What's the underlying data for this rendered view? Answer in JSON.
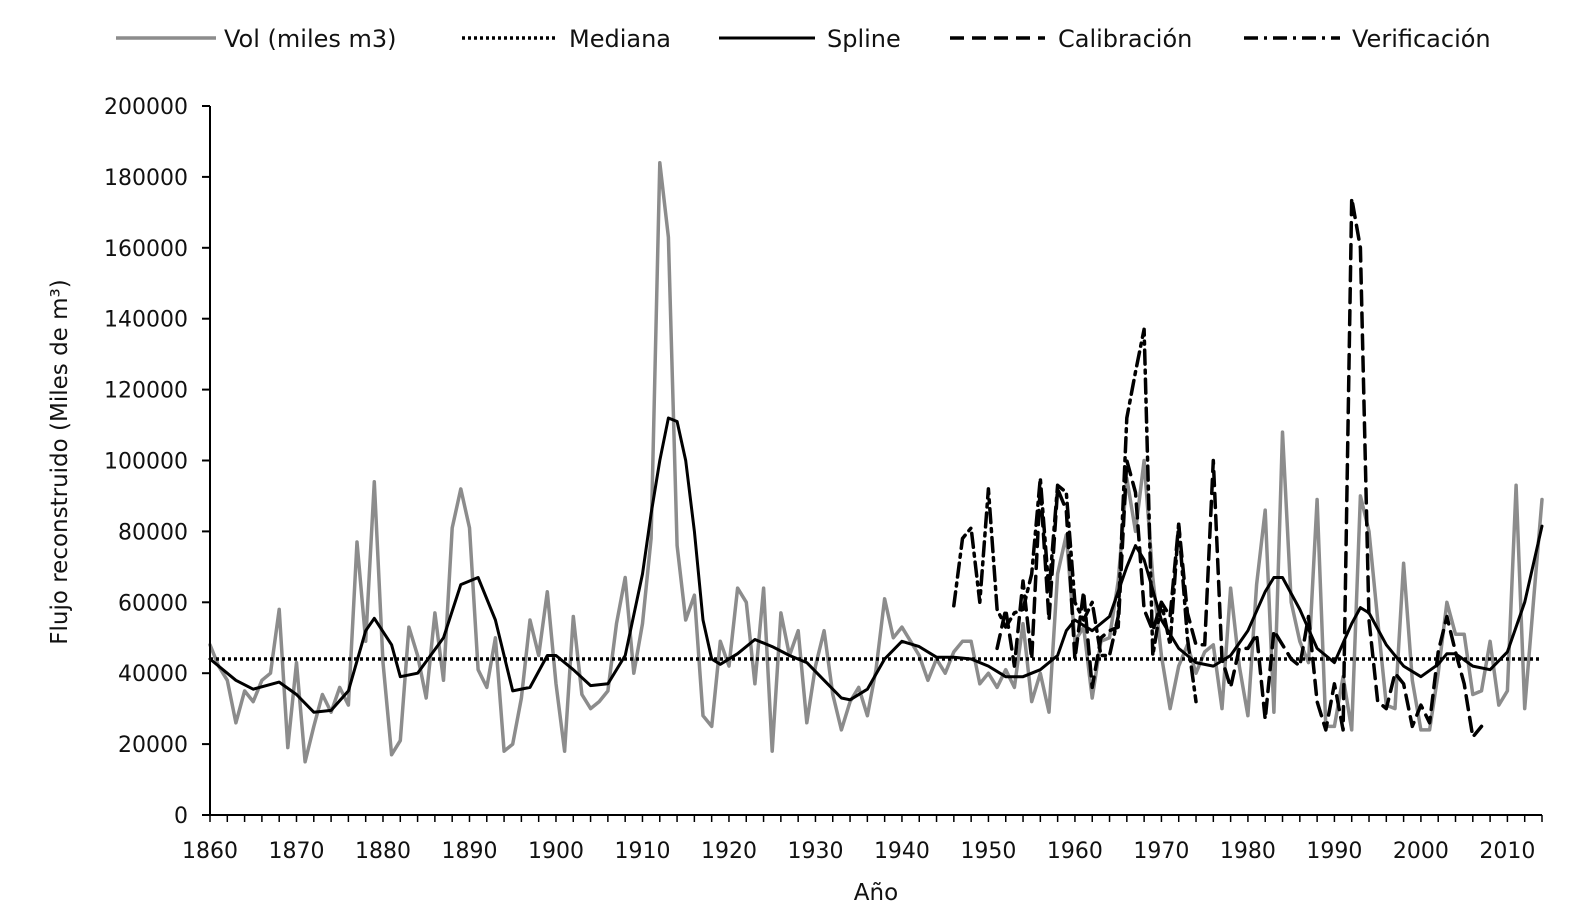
{
  "chart_data": {
    "type": "line",
    "title": "",
    "xlabel": "Año",
    "ylabel": "Flujo reconstruido (Miles de m³)",
    "xlim": [
      1860,
      2014
    ],
    "ylim": [
      0,
      200000
    ],
    "x_ticks": [
      1860,
      1870,
      1880,
      1890,
      1900,
      1910,
      1920,
      1930,
      1940,
      1950,
      1960,
      1970,
      1980,
      1990,
      2000,
      2010
    ],
    "x_tick_labels": [
      "1860",
      "1870",
      "1880",
      "1890",
      "1900",
      "1910",
      "1920",
      "1930",
      "1940",
      "1950",
      "1960",
      "1970",
      "1980",
      "1990",
      "2000",
      "2010"
    ],
    "y_ticks": [
      0,
      20000,
      40000,
      60000,
      80000,
      100000,
      120000,
      140000,
      160000,
      180000,
      200000
    ],
    "y_tick_labels": [
      "0",
      "20000",
      "40000",
      "60000",
      "80000",
      "100000",
      "120000",
      "140000",
      "160000",
      "180000",
      "200000"
    ],
    "grid": false,
    "legend_position": "top",
    "series": [
      {
        "name": "Vol (miles m3)",
        "style": "solid",
        "color": "#8c8c8c",
        "width": 3.5,
        "x": [
          1860,
          1861,
          1862,
          1863,
          1864,
          1865,
          1866,
          1867,
          1868,
          1869,
          1870,
          1871,
          1872,
          1873,
          1874,
          1875,
          1876,
          1877,
          1878,
          1879,
          1880,
          1881,
          1882,
          1883,
          1884,
          1885,
          1886,
          1887,
          1888,
          1889,
          1890,
          1891,
          1892,
          1893,
          1894,
          1895,
          1896,
          1897,
          1898,
          1899,
          1900,
          1901,
          1902,
          1903,
          1904,
          1905,
          1906,
          1907,
          1908,
          1909,
          1910,
          1911,
          1912,
          1913,
          1914,
          1915,
          1916,
          1917,
          1918,
          1919,
          1920,
          1921,
          1922,
          1923,
          1924,
          1925,
          1926,
          1927,
          1928,
          1929,
          1930,
          1931,
          1932,
          1933,
          1934,
          1935,
          1936,
          1937,
          1938,
          1939,
          1940,
          1941,
          1942,
          1943,
          1944,
          1945,
          1946,
          1947,
          1948,
          1949,
          1950,
          1951,
          1952,
          1953,
          1954,
          1955,
          1956,
          1957,
          1958,
          1959,
          1960,
          1961,
          1962,
          1963,
          1964,
          1965,
          1966,
          1967,
          1968,
          1969,
          1970,
          1971,
          1972,
          1973,
          1974,
          1975,
          1976,
          1977,
          1978,
          1979,
          1980,
          1981,
          1982,
          1983,
          1984,
          1985,
          1986,
          1987,
          1988,
          1989,
          1990,
          1991,
          1992,
          1993,
          1994,
          1995,
          1996,
          1997,
          1998,
          1999,
          2000,
          2001,
          2002,
          2003,
          2004,
          2005,
          2006,
          2007,
          2008,
          2009,
          2010,
          2011,
          2012,
          2013,
          2014
        ],
        "values": [
          48000,
          42000,
          38000,
          26000,
          35000,
          32000,
          38000,
          40000,
          58000,
          19000,
          43000,
          15000,
          25000,
          34000,
          29000,
          36000,
          31000,
          77000,
          49000,
          94000,
          43000,
          17000,
          21000,
          53000,
          45000,
          33000,
          57000,
          38000,
          81000,
          92000,
          81000,
          41000,
          36000,
          50000,
          18000,
          20000,
          33000,
          55000,
          45000,
          63000,
          37000,
          18000,
          56000,
          34000,
          30000,
          32000,
          35000,
          54000,
          67000,
          40000,
          54000,
          78000,
          184000,
          163000,
          76000,
          55000,
          62000,
          28000,
          25000,
          49000,
          42000,
          64000,
          60000,
          37000,
          64000,
          18000,
          57000,
          45000,
          52000,
          26000,
          42000,
          52000,
          34000,
          24000,
          32000,
          36000,
          28000,
          41000,
          61000,
          50000,
          53000,
          49000,
          45000,
          38000,
          44000,
          40000,
          46000,
          49000,
          49000,
          37000,
          40000,
          36000,
          41000,
          36000,
          54000,
          32000,
          40000,
          29000,
          68000,
          79000,
          49000,
          53000,
          33000,
          49000,
          50000,
          66000,
          95000,
          80000,
          100000,
          67000,
          45000,
          30000,
          42000,
          48000,
          40000,
          46000,
          48000,
          30000,
          64000,
          42000,
          28000,
          65000,
          86000,
          29000,
          108000,
          60000,
          49000,
          43000,
          89000,
          25000,
          25000,
          39000,
          24000,
          90000,
          80000,
          55000,
          31000,
          30000,
          71000,
          38000,
          24000,
          24000,
          40000,
          60000,
          51000,
          51000,
          34000,
          35000,
          49000,
          31000,
          35000,
          93000,
          30000,
          60000,
          89000
        ]
      },
      {
        "name": "Mediana",
        "style": "dotted",
        "color": "#000000",
        "width": 3.5,
        "x": [
          1860,
          2014
        ],
        "values": [
          44000,
          44000
        ]
      },
      {
        "name": "Spline",
        "style": "solid",
        "color": "#000000",
        "width": 3,
        "x": [
          1860,
          1863,
          1865,
          1868,
          1870,
          1872,
          1874,
          1876,
          1878,
          1879,
          1881,
          1882,
          1884,
          1887,
          1889,
          1891,
          1893,
          1895,
          1897,
          1899,
          1900,
          1902,
          1904,
          1906,
          1908,
          1910,
          1911,
          1912,
          1913,
          1914,
          1915,
          1916,
          1917,
          1918,
          1919,
          1921,
          1923,
          1925,
          1927,
          1929,
          1931,
          1933,
          1934,
          1936,
          1938,
          1940,
          1942,
          1944,
          1946,
          1948,
          1950,
          1952,
          1954,
          1956,
          1958,
          1959,
          1960,
          1962,
          1964,
          1966,
          1967,
          1968,
          1970,
          1972,
          1974,
          1976,
          1978,
          1980,
          1982,
          1983,
          1984,
          1986,
          1988,
          1990,
          1992,
          1993,
          1994,
          1996,
          1998,
          2000,
          2002,
          2003,
          2004,
          2006,
          2008,
          2010,
          2012,
          2014
        ],
        "values": [
          44000,
          38000,
          35500,
          37500,
          34000,
          29000,
          29500,
          35000,
          52000,
          55500,
          48000,
          39000,
          40000,
          50000,
          65000,
          67000,
          55000,
          35000,
          36000,
          45000,
          45000,
          41000,
          36500,
          37000,
          45000,
          68000,
          85000,
          100000,
          112000,
          111000,
          100000,
          80000,
          55000,
          44000,
          42500,
          45500,
          49500,
          47500,
          45000,
          43000,
          38000,
          33000,
          32500,
          35500,
          44000,
          49000,
          47500,
          44500,
          44500,
          44000,
          42000,
          39000,
          39000,
          41000,
          45000,
          52000,
          55000,
          52000,
          56000,
          70000,
          76000,
          72000,
          55000,
          47000,
          43000,
          42000,
          45000,
          52000,
          63000,
          67000,
          67000,
          58000,
          47000,
          43000,
          54000,
          58500,
          57000,
          48000,
          42000,
          39000,
          42500,
          45500,
          45500,
          42000,
          41000,
          46000,
          60000,
          81500
        ]
      },
      {
        "name": "Calibración",
        "style": "dashed",
        "color": "#000000",
        "width": 3.5,
        "x": [
          1951,
          1952,
          1953,
          1954,
          1955,
          1956,
          1957,
          1958,
          1959,
          1960,
          1961,
          1962,
          1963,
          1964,
          1965,
          1966,
          1967,
          1968,
          1969,
          1970,
          1971,
          1972,
          1973,
          1974,
          1975,
          1976,
          1977,
          1978,
          1979,
          1980,
          1981,
          1982,
          1983,
          1984,
          1985,
          1986,
          1987,
          1988,
          1989,
          1990,
          1991,
          1992,
          1993,
          1994,
          1995,
          1996,
          1997,
          1998,
          1999,
          2000,
          2001,
          2002,
          2003,
          2004,
          2005,
          2006,
          2007
        ],
        "values": [
          47000,
          58000,
          42000,
          66000,
          44000,
          93000,
          55000,
          92000,
          86000,
          44000,
          63000,
          36000,
          50000,
          52000,
          53000,
          100000,
          91000,
          58000,
          52000,
          60000,
          56000,
          82000,
          57000,
          48000,
          48000,
          100000,
          44000,
          36000,
          47000,
          47000,
          51000,
          27000,
          52000,
          48000,
          44000,
          42000,
          56000,
          32000,
          24000,
          37000,
          24000,
          174000,
          160000,
          55000,
          32000,
          30000,
          40000,
          37000,
          25000,
          31000,
          26000,
          46000,
          56000,
          46000,
          37000,
          22000,
          25000
        ]
      },
      {
        "name": "Verificación",
        "style": "dashdot",
        "color": "#000000",
        "width": 3.5,
        "x": [
          1946,
          1947,
          1948,
          1949,
          1950,
          1951,
          1952,
          1953,
          1954,
          1955,
          1956,
          1957,
          1958,
          1959,
          1960,
          1961,
          1962,
          1963,
          1964,
          1965,
          1966,
          1967,
          1968,
          1969,
          1970,
          1971,
          1972,
          1973,
          1974
        ],
        "values": [
          59000,
          78000,
          81000,
          60000,
          92000,
          58000,
          53000,
          57000,
          58000,
          68000,
          95000,
          63000,
          93000,
          91000,
          60000,
          55000,
          60000,
          45000,
          45000,
          56000,
          112000,
          125000,
          137000,
          45000,
          60000,
          48000,
          82000,
          50000,
          32000
        ]
      }
    ]
  }
}
